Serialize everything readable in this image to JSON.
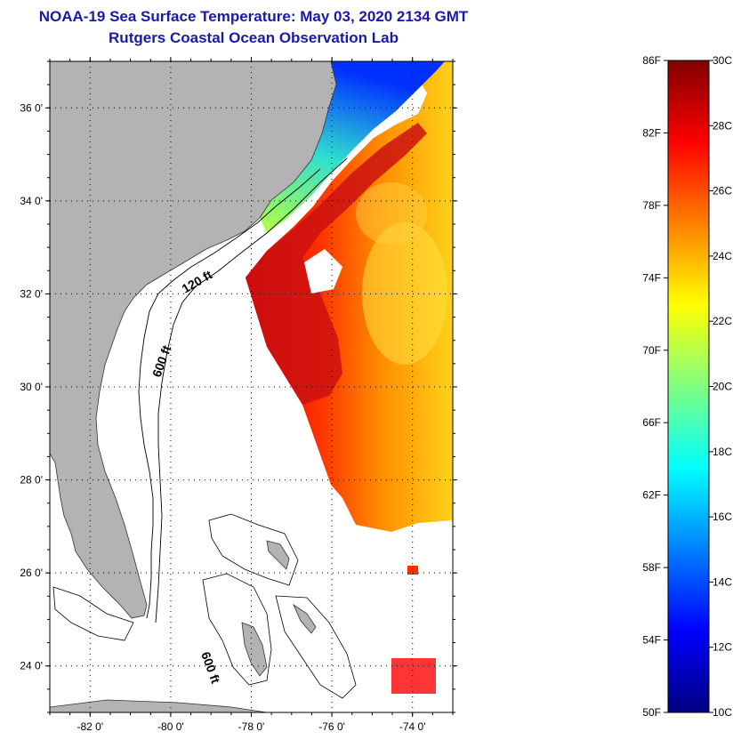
{
  "header": {
    "title_line1": "NOAA-19 Sea Surface Temperature:  May 03, 2020 2134 GMT",
    "title_line2": "Rutgers Coastal Ocean Observation Lab"
  },
  "map": {
    "lat_range": [
      23.0,
      37.0
    ],
    "lon_range": [
      -83.0,
      -73.0
    ],
    "lat_ticks": [
      {
        "value": 24,
        "label": "24 0'"
      },
      {
        "value": 26,
        "label": "26 0'"
      },
      {
        "value": 28,
        "label": "28 0'"
      },
      {
        "value": 30,
        "label": "30 0'"
      },
      {
        "value": 32,
        "label": "32 0'"
      },
      {
        "value": 34,
        "label": "34 0'"
      },
      {
        "value": 36,
        "label": "36 0'"
      }
    ],
    "lon_ticks": [
      {
        "value": -82,
        "label": "-82 0'"
      },
      {
        "value": -80,
        "label": "-80 0'"
      },
      {
        "value": -78,
        "label": "-78 0'"
      },
      {
        "value": -76,
        "label": "-76 0'"
      },
      {
        "value": -74,
        "label": "-74 0'"
      }
    ],
    "contour_labels": [
      "120 ft",
      "600 ft",
      "600 ft"
    ],
    "grid": "dotted",
    "land_color": "#b3b3b3"
  },
  "colorbar": {
    "fahrenheit": [
      "86F",
      "82F",
      "78F",
      "74F",
      "70F",
      "66F",
      "62F",
      "58F",
      "54F",
      "50F"
    ],
    "celsius": [
      "30C",
      "28C",
      "26C",
      "24C",
      "22C",
      "20C",
      "18C",
      "16C",
      "14C",
      "12C",
      "10C"
    ],
    "stops": [
      "#000080",
      "#0000ff",
      "#0080ff",
      "#00ffff",
      "#80ff80",
      "#ffff00",
      "#ff8000",
      "#ff0000",
      "#800000"
    ]
  }
}
